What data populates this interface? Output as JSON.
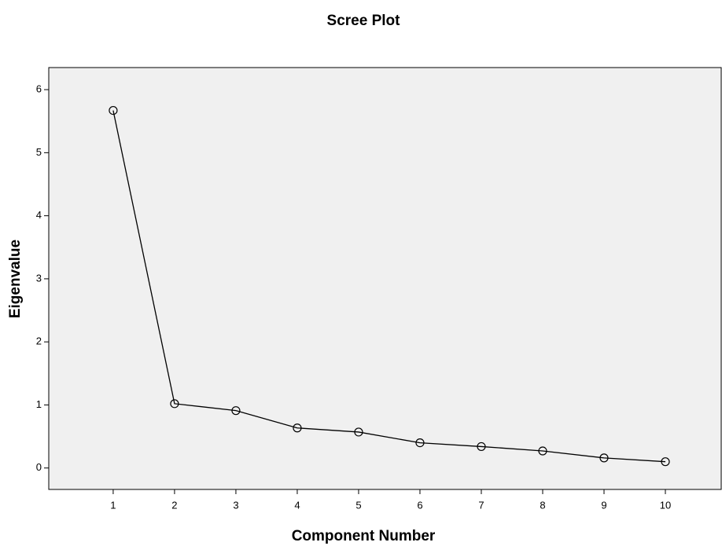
{
  "chart_data": {
    "type": "line",
    "title": "Scree Plot",
    "x_label": "Component Number",
    "y_label": "Eigenvalue",
    "x": [
      1,
      2,
      3,
      4,
      5,
      6,
      7,
      8,
      9,
      10
    ],
    "series": [
      {
        "color": "#000000",
        "values": [
          5.67,
          1.02,
          0.91,
          0.635,
          0.57,
          0.4,
          0.34,
          0.27,
          0.16,
          0.1
        ]
      }
    ],
    "marker": "circle",
    "xlim": [
      -0.05,
      10.91
    ],
    "xticks": [
      1,
      2,
      3,
      4,
      5,
      6,
      7,
      8,
      9,
      10
    ],
    "ylim": [
      -0.34,
      6.35
    ],
    "yticks": [
      0,
      1,
      2,
      3,
      4,
      5,
      6
    ],
    "plot_background": "#f0f0f0"
  }
}
